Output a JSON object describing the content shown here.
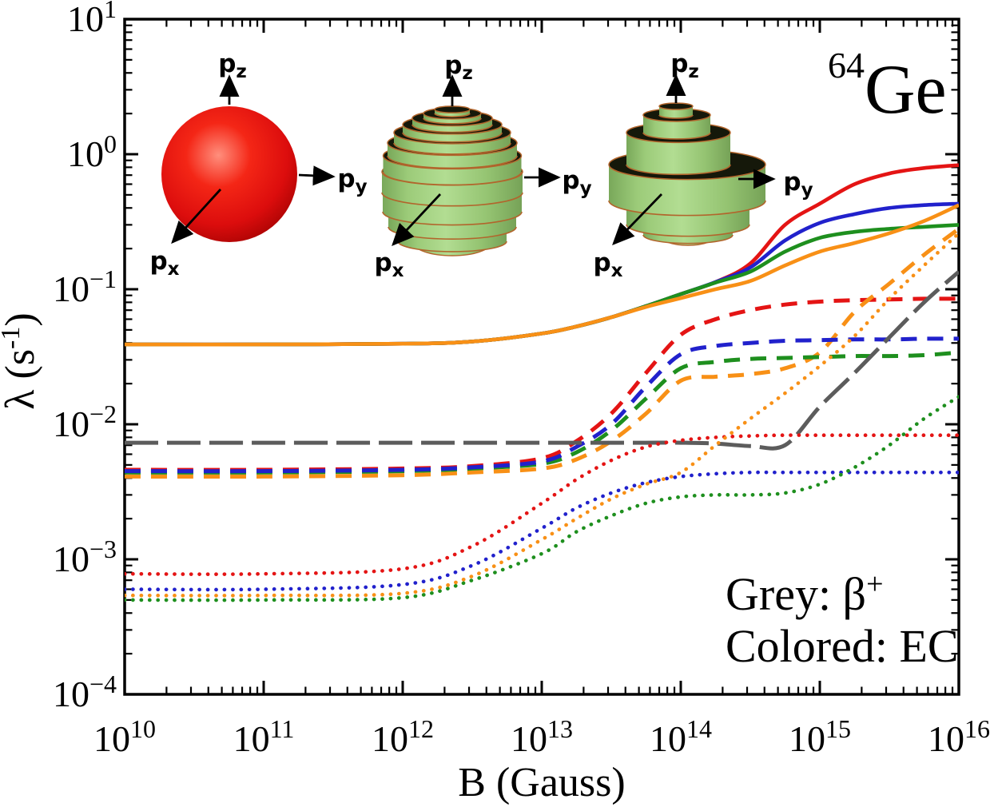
{
  "title_annotation": {
    "mass_superscript": "64",
    "element": "Ge"
  },
  "axes": {
    "x": {
      "label": "B (Gauss)",
      "tick_base": "10",
      "tick_exponents": [
        "10",
        "11",
        "12",
        "13",
        "14",
        "15",
        "16"
      ],
      "log_min": 10,
      "log_max": 16
    },
    "y": {
      "label_prefix": "λ (s",
      "label_sup": "-1",
      "label_suffix": ")",
      "tick_base": "10",
      "tick_exponents": [
        "1",
        "0",
        "−1",
        "−2",
        "−3",
        "−4"
      ],
      "log_min": -4,
      "log_max": 1
    }
  },
  "legend": {
    "grey_prefix": "Grey: β",
    "grey_sup": "+",
    "colored": "Colored: EC"
  },
  "colors": {
    "red": "#e41414",
    "blue": "#2121cc",
    "green": "#1e8f1e",
    "orange": "#f89016",
    "grey": "#5c5c5c",
    "inset_green": "#9ed686",
    "inset_edge": "#b2652c",
    "inset_top_dark": "#15180a",
    "sphere_red": "#e01010"
  },
  "insets": [
    {
      "name": "free-sphere",
      "shape": "sphere",
      "axis_labels": {
        "x": {
          "base": "p",
          "sub": "x"
        },
        "y": {
          "base": "p",
          "sub": "y"
        },
        "z": {
          "base": "p",
          "sub": "z"
        }
      }
    },
    {
      "name": "layered-sphere",
      "shape": "stacked-rings-sphere",
      "axis_labels": {
        "x": {
          "base": "p",
          "sub": "x"
        },
        "y": {
          "base": "p",
          "sub": "y"
        },
        "z": {
          "base": "p",
          "sub": "z"
        }
      }
    },
    {
      "name": "stacked-cylinders",
      "shape": "stacked-cylinders",
      "axis_labels": {
        "x": {
          "base": "p",
          "sub": "x"
        },
        "y": {
          "base": "p",
          "sub": "y"
        },
        "z": {
          "base": "p",
          "sub": "z"
        }
      }
    }
  ],
  "chart_data": {
    "type": "line",
    "title": "64Ge weak-decay rates vs magnetic field",
    "xlabel": "B (Gauss)",
    "ylabel": "λ (s⁻¹)",
    "x_axis_scale": "log",
    "y_axis_scale": "log",
    "x_range_log10": [
      10,
      16
    ],
    "y_range_log10": [
      -4,
      1
    ],
    "grid": false,
    "annotations": [
      "⁶⁴Ge",
      "Grey: β⁺",
      "Colored: EC"
    ],
    "x_log10_B": [
      10,
      11,
      12,
      12.5,
      13,
      13.25,
      13.5,
      13.75,
      14,
      14.25,
      14.5,
      14.75,
      15,
      15.25,
      15.5,
      15.75,
      16
    ],
    "series": [
      {
        "id": "ec-solid-red",
        "label": "EC (solid, red)",
        "color": "#e41414",
        "style": "solid",
        "values": [
          0.039,
          0.039,
          0.0395,
          0.041,
          0.047,
          0.053,
          0.062,
          0.075,
          0.092,
          0.113,
          0.155,
          0.3,
          0.43,
          0.6,
          0.72,
          0.79,
          0.83
        ]
      },
      {
        "id": "ec-solid-blue",
        "label": "EC (solid, blue)",
        "color": "#2121cc",
        "style": "solid",
        "values": [
          0.039,
          0.039,
          0.0395,
          0.041,
          0.047,
          0.053,
          0.062,
          0.075,
          0.092,
          0.113,
          0.145,
          0.23,
          0.31,
          0.36,
          0.4,
          0.42,
          0.43
        ]
      },
      {
        "id": "ec-solid-green",
        "label": "EC (solid, green)",
        "color": "#1e8f1e",
        "style": "solid",
        "values": [
          0.039,
          0.039,
          0.0395,
          0.041,
          0.047,
          0.053,
          0.062,
          0.075,
          0.092,
          0.112,
          0.135,
          0.19,
          0.24,
          0.266,
          0.28,
          0.29,
          0.3
        ]
      },
      {
        "id": "ec-solid-orange",
        "label": "EC (solid, orange)",
        "color": "#f89016",
        "style": "solid",
        "values": [
          0.039,
          0.039,
          0.0395,
          0.041,
          0.047,
          0.053,
          0.062,
          0.074,
          0.086,
          0.1,
          0.115,
          0.15,
          0.19,
          0.22,
          0.26,
          0.32,
          0.42
        ]
      },
      {
        "id": "ec-dashed-red",
        "label": "EC (dashed, red)",
        "color": "#e41414",
        "style": "dashed",
        "values": [
          0.0046,
          0.0046,
          0.0047,
          0.0049,
          0.0056,
          0.0075,
          0.012,
          0.024,
          0.046,
          0.06,
          0.07,
          0.077,
          0.081,
          0.083,
          0.084,
          0.085,
          0.085
        ]
      },
      {
        "id": "ec-dashed-orange",
        "label": "EC (dashed, orange)",
        "color": "#f89016",
        "style": "dashed",
        "values": [
          0.0041,
          0.0041,
          0.0042,
          0.0044,
          0.0047,
          0.0055,
          0.0075,
          0.012,
          0.021,
          0.0225,
          0.0235,
          0.026,
          0.034,
          0.068,
          0.11,
          0.18,
          0.28
        ]
      },
      {
        "id": "ec-dashed-green",
        "label": "EC (dashed, green)",
        "color": "#1e8f1e",
        "style": "dashed",
        "values": [
          0.0044,
          0.0044,
          0.0045,
          0.0047,
          0.0051,
          0.0062,
          0.009,
          0.0155,
          0.026,
          0.029,
          0.0305,
          0.031,
          0.0315,
          0.032,
          0.032,
          0.0325,
          0.034
        ]
      },
      {
        "id": "ec-dashed-blue",
        "label": "EC (dashed, blue)",
        "color": "#2121cc",
        "style": "dashed",
        "values": [
          0.0045,
          0.0045,
          0.0046,
          0.0048,
          0.0053,
          0.0068,
          0.01,
          0.019,
          0.033,
          0.038,
          0.04,
          0.0415,
          0.042,
          0.0425,
          0.0425,
          0.043,
          0.043
        ]
      },
      {
        "id": "beta-plus-grey",
        "label": "β+ (grey, long dash)",
        "color": "#5c5c5c",
        "style": "longdash",
        "values": [
          0.0073,
          0.0073,
          0.0073,
          0.0073,
          0.0073,
          0.0073,
          0.0073,
          0.0073,
          0.0073,
          0.0072,
          0.0069,
          0.007,
          0.0135,
          0.024,
          0.044,
          0.08,
          0.135
        ]
      },
      {
        "id": "ec-dotted-red",
        "label": "EC (dotted, red)",
        "color": "#e41414",
        "style": "dotted",
        "values": [
          0.00078,
          0.00078,
          0.00085,
          0.00125,
          0.0026,
          0.0039,
          0.0054,
          0.0068,
          0.0076,
          0.008,
          0.0082,
          0.0083,
          0.0083,
          0.0083,
          0.0083,
          0.0083,
          0.0083
        ]
      },
      {
        "id": "ec-dotted-blue",
        "label": "EC (dotted, blue)",
        "color": "#2121cc",
        "style": "dotted",
        "values": [
          0.0006,
          0.0006,
          0.00065,
          0.0009,
          0.0017,
          0.0024,
          0.0031,
          0.0037,
          0.0041,
          0.0043,
          0.0044,
          0.0044,
          0.0044,
          0.0044,
          0.0044,
          0.0044,
          0.0044
        ]
      },
      {
        "id": "ec-dotted-green",
        "label": "EC (dotted, green)",
        "color": "#1e8f1e",
        "style": "dotted",
        "values": [
          0.0005,
          0.0005,
          0.00052,
          0.0007,
          0.0011,
          0.0016,
          0.0021,
          0.0026,
          0.0029,
          0.003,
          0.003,
          0.0031,
          0.0036,
          0.0048,
          0.007,
          0.011,
          0.016
        ]
      },
      {
        "id": "ec-dotted-orange",
        "label": "EC (dotted, orange)",
        "color": "#f89016",
        "style": "dotted",
        "values": [
          0.00054,
          0.00054,
          0.00056,
          0.00075,
          0.0014,
          0.002,
          0.0028,
          0.0036,
          0.0044,
          0.007,
          0.011,
          0.017,
          0.027,
          0.045,
          0.085,
          0.15,
          0.26
        ]
      }
    ]
  }
}
